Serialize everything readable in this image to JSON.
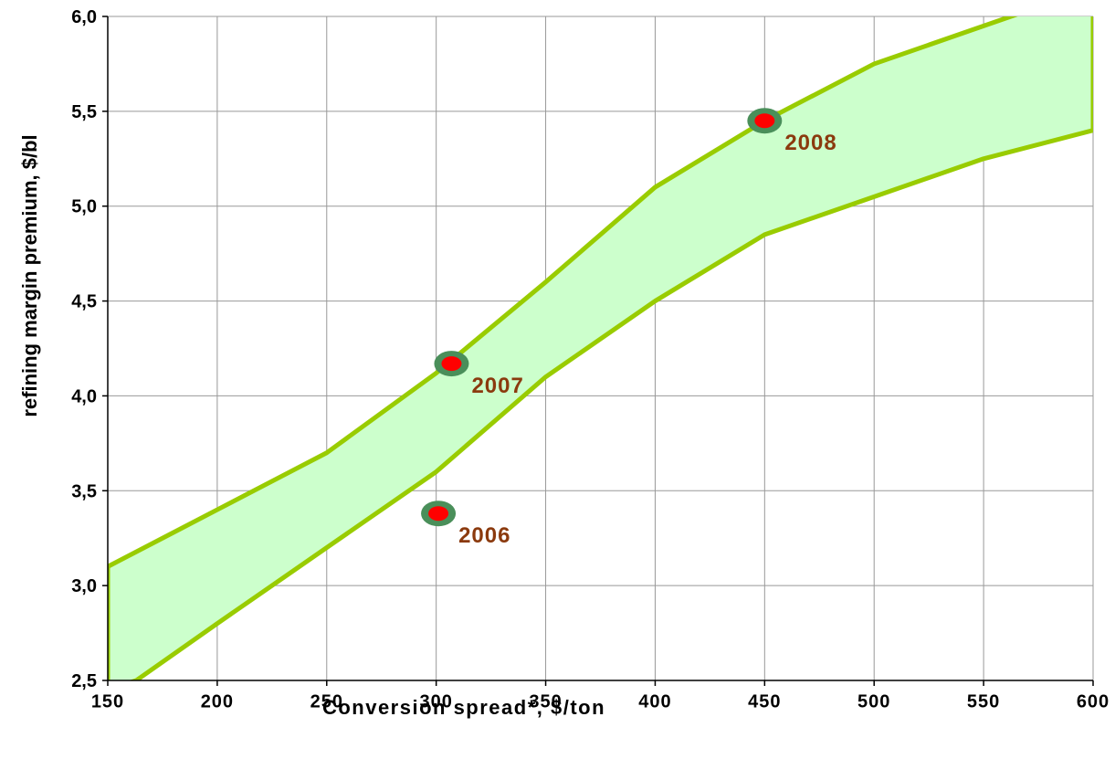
{
  "chart_data": {
    "type": "area",
    "xlabel": "Conversion spread*, $/ton",
    "ylabel": "refining margin premium, $/bl",
    "xlim": [
      150,
      600
    ],
    "ylim": [
      2.5,
      6.0
    ],
    "x_ticks": [
      150,
      200,
      250,
      300,
      350,
      400,
      450,
      500,
      550,
      600
    ],
    "x_tick_labels": [
      "150",
      "200",
      "250",
      "300",
      "350",
      "400",
      "450",
      "500",
      "550",
      "600"
    ],
    "y_ticks": [
      2.5,
      3.0,
      3.5,
      4.0,
      4.5,
      5.0,
      5.5,
      6.0
    ],
    "y_tick_labels": [
      "2,5",
      "3,0",
      "3,5",
      "4,0",
      "4,5",
      "5,0",
      "5,5",
      "6,0"
    ],
    "grid": true,
    "legend": "none",
    "band": {
      "fill_color": "#ccffcc",
      "line_color": "#99cc00",
      "upper": {
        "x": [
          150,
          180,
          200,
          250,
          300,
          350,
          400,
          450,
          500,
          550,
          575,
          600
        ],
        "y": [
          3.1,
          3.28,
          3.4,
          3.7,
          4.12,
          4.6,
          5.1,
          5.45,
          5.75,
          5.95,
          6.05,
          6.1
        ]
      },
      "lower": {
        "x": [
          150,
          163,
          200,
          250,
          300,
          350,
          400,
          450,
          500,
          550,
          600
        ],
        "y": [
          2.45,
          2.5,
          2.8,
          3.2,
          3.6,
          4.1,
          4.5,
          4.85,
          5.05,
          5.25,
          5.4
        ]
      }
    },
    "points": [
      {
        "x": 301,
        "y": 3.38,
        "label": "2006"
      },
      {
        "x": 307,
        "y": 4.17,
        "label": "2007"
      },
      {
        "x": 450,
        "y": 5.45,
        "label": "2008"
      }
    ],
    "point_colors": {
      "inner": "#ff0000",
      "ring": "#4a8f5a"
    },
    "annotation_color": "#8b3a0e"
  }
}
